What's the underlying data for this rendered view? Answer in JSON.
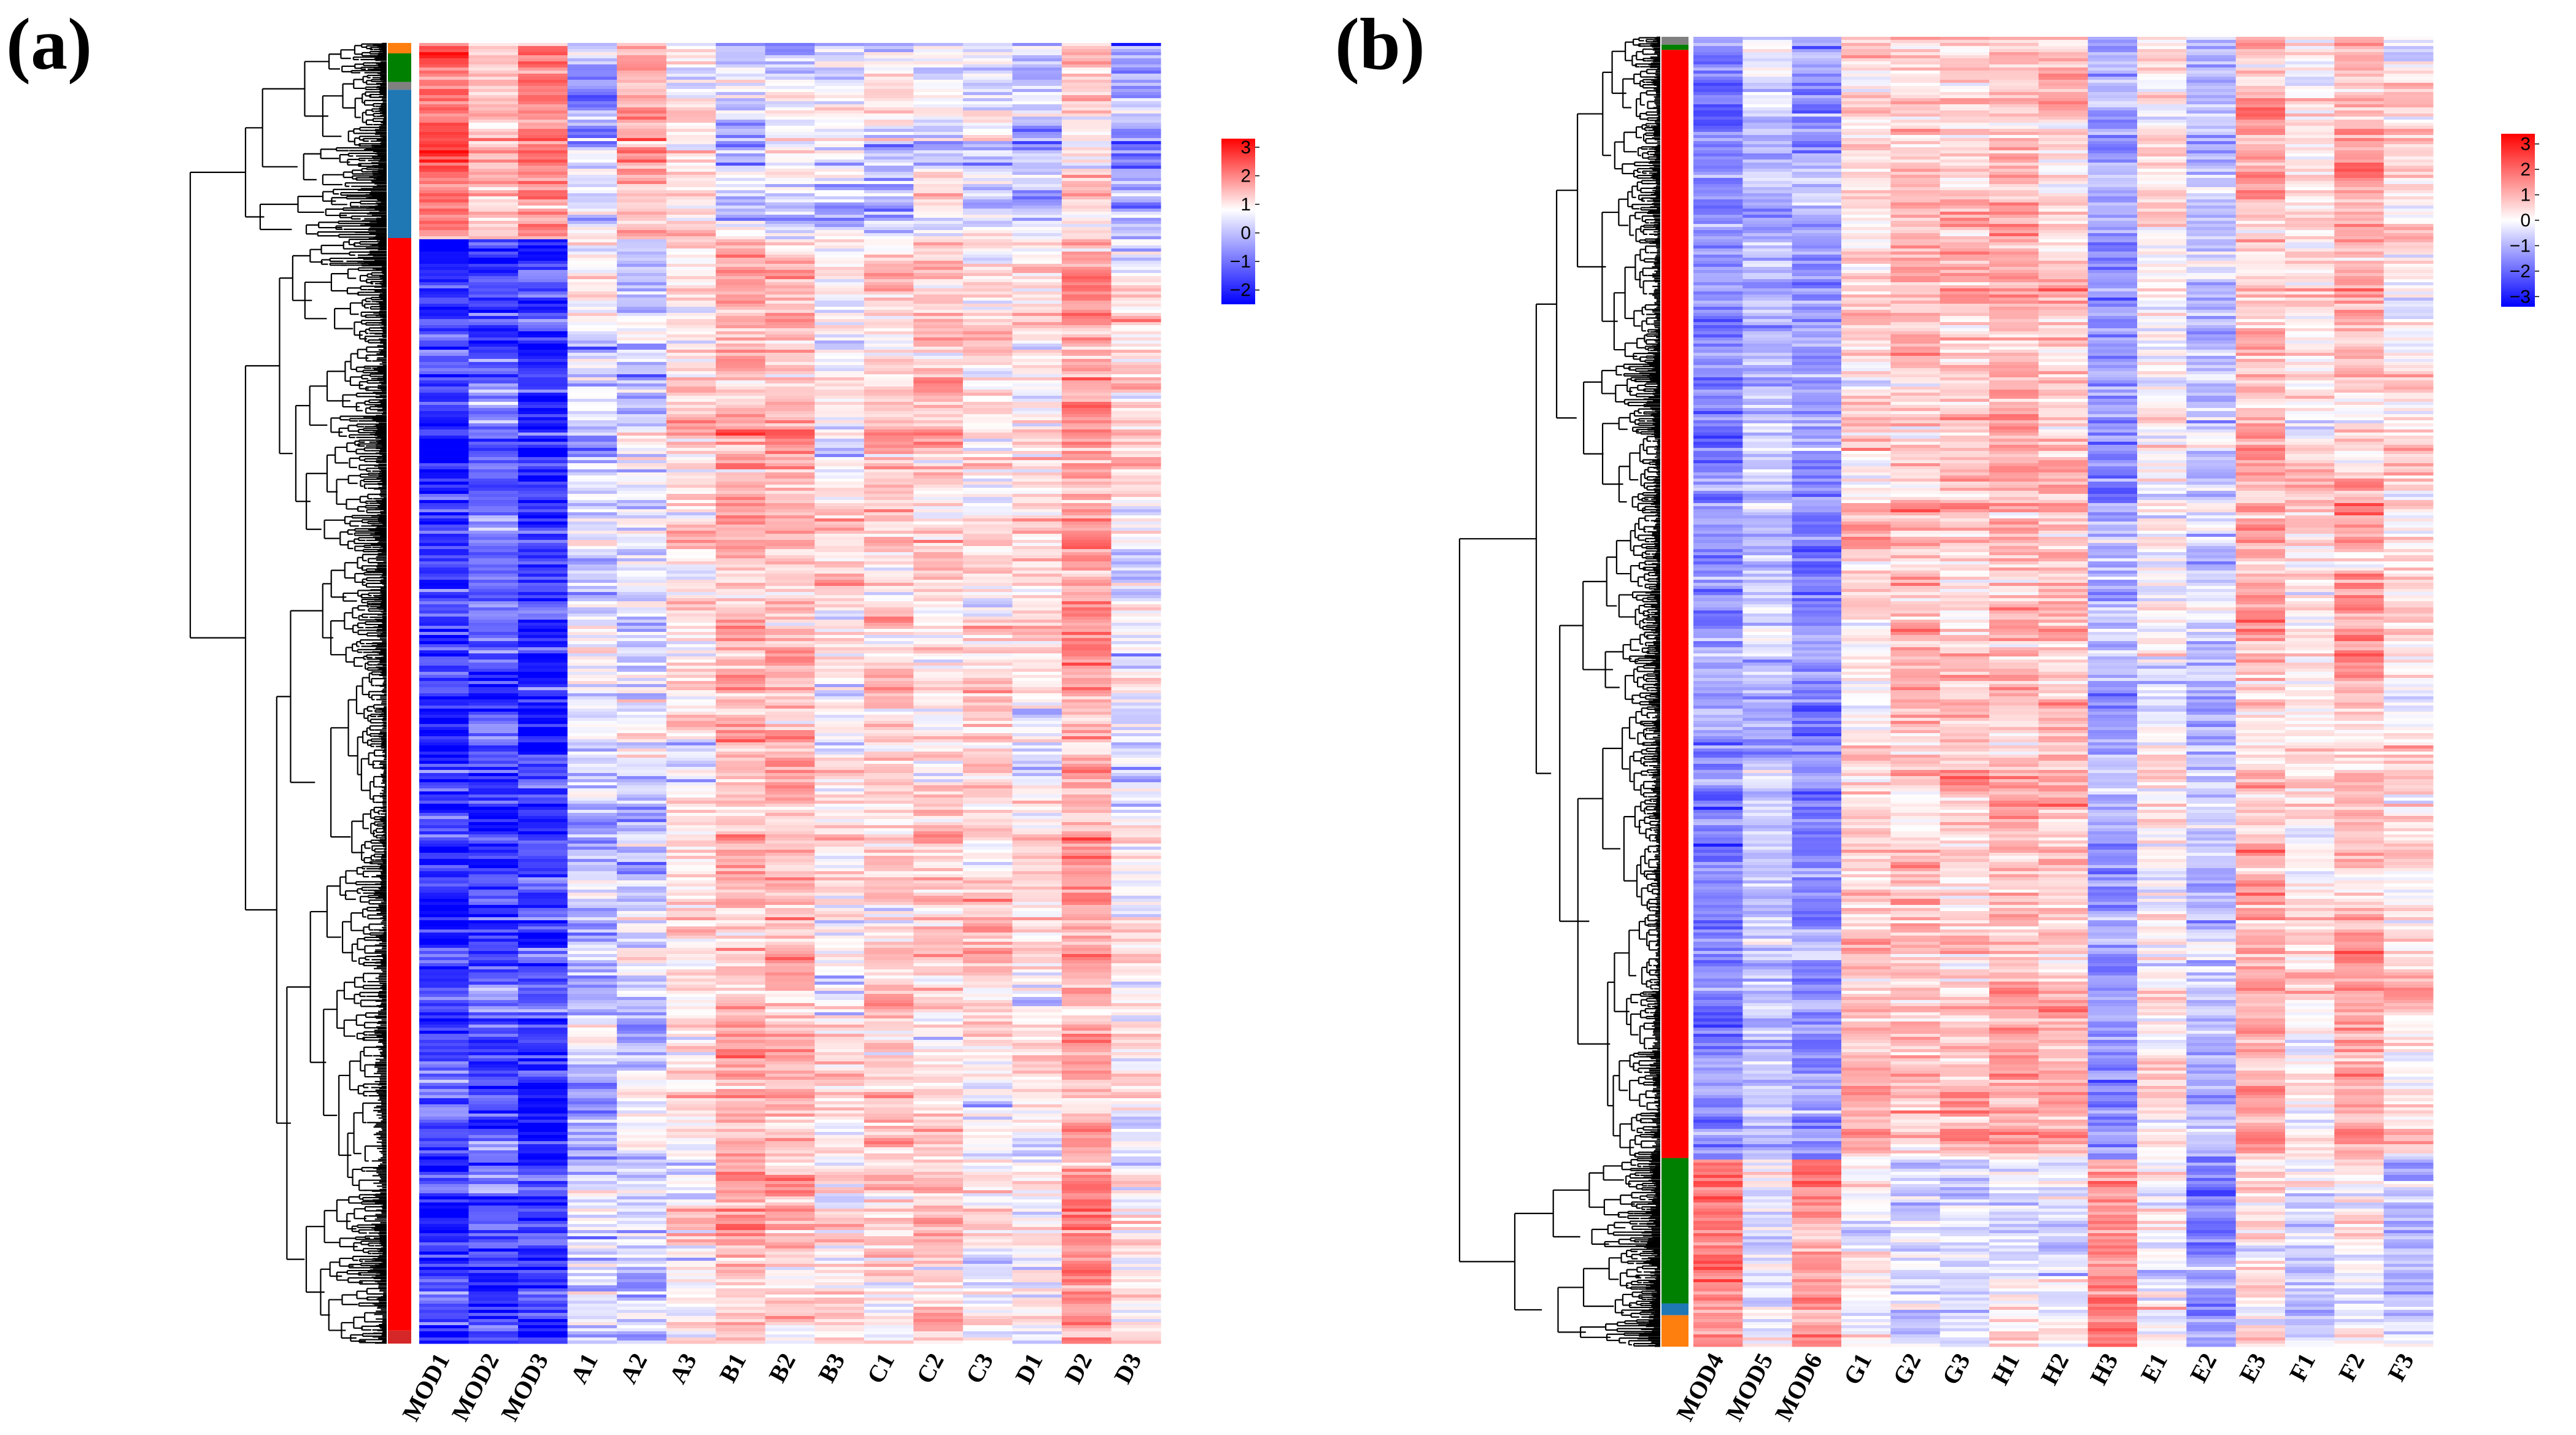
{
  "chart_data": [
    {
      "panel_label": "(a)",
      "type": "heatmap",
      "columns": [
        "MOD1",
        "MOD2",
        "MOD3",
        "A1",
        "A2",
        "A3",
        "B1",
        "B2",
        "B3",
        "C1",
        "C2",
        "C3",
        "D1",
        "D2",
        "D3"
      ],
      "color_scale": {
        "min": -2.5,
        "max": 3.3,
        "low": "#0000ff",
        "mid": "#ffffff",
        "high": "#ff0000",
        "ticks": [
          3,
          2,
          1,
          0,
          -1,
          -2
        ],
        "tick_labels": [
          "3",
          "2",
          "1",
          "0",
          "−1",
          "−2"
        ]
      },
      "row_clusters": [
        {
          "color": "#ff7f0e",
          "fraction": 0.008
        },
        {
          "color": "#008000",
          "fraction": 0.022
        },
        {
          "color": "#808080",
          "fraction": 0.006
        },
        {
          "color": "#1f77b4",
          "fraction": 0.114
        },
        {
          "color": "#ff0000",
          "fraction": 0.84
        },
        {
          "color": "#d62728",
          "fraction": 0.01
        }
      ],
      "approx_mean_zscore_by_cluster": {
        "top_group": [
          2.0,
          0.8,
          1.5,
          -0.6,
          0.9,
          0.2,
          -0.4,
          -0.3,
          -0.2,
          -0.3,
          -0.4,
          -0.3,
          -0.5,
          0.5,
          -0.8
        ],
        "main_group": [
          -2.0,
          -1.6,
          -1.9,
          -0.5,
          -0.4,
          0.3,
          1.0,
          0.8,
          0.2,
          0.6,
          0.6,
          0.3,
          0.2,
          1.2,
          0.1
        ]
      }
    },
    {
      "panel_label": "(b)",
      "type": "heatmap",
      "columns": [
        "MOD4",
        "MOD5",
        "MOD6",
        "G1",
        "G2",
        "G3",
        "H1",
        "H2",
        "H3",
        "E1",
        "E2",
        "E3",
        "F1",
        "F2",
        "F3"
      ],
      "color_scale": {
        "min": -3.4,
        "max": 3.4,
        "low": "#0000ff",
        "mid": "#ffffff",
        "high": "#ff0000",
        "ticks": [
          3,
          2,
          1,
          0,
          -1,
          -2,
          -3
        ],
        "tick_labels": [
          "3",
          "2",
          "1",
          "0",
          "−1",
          "−2",
          "−3"
        ]
      },
      "row_clusters": [
        {
          "color": "#808080",
          "fraction": 0.006
        },
        {
          "color": "#008000",
          "fraction": 0.004
        },
        {
          "color": "#ff0000",
          "fraction": 0.846
        },
        {
          "color": "#008000",
          "fraction": 0.111
        },
        {
          "color": "#1f77b4",
          "fraction": 0.009
        },
        {
          "color": "#ff7f0e",
          "fraction": 0.024
        }
      ],
      "approx_mean_zscore_by_cluster": {
        "main_group": [
          -1.5,
          -0.8,
          -1.4,
          0.6,
          0.8,
          0.7,
          1.0,
          0.9,
          -1.3,
          0.2,
          -0.8,
          1.0,
          0.3,
          1.0,
          0.4
        ],
        "bottom_group": [
          1.8,
          -0.4,
          1.2,
          -0.3,
          -0.5,
          -0.4,
          -0.2,
          -0.3,
          1.8,
          -0.4,
          -1.4,
          0.2,
          -0.5,
          0.0,
          -0.8
        ]
      }
    }
  ]
}
